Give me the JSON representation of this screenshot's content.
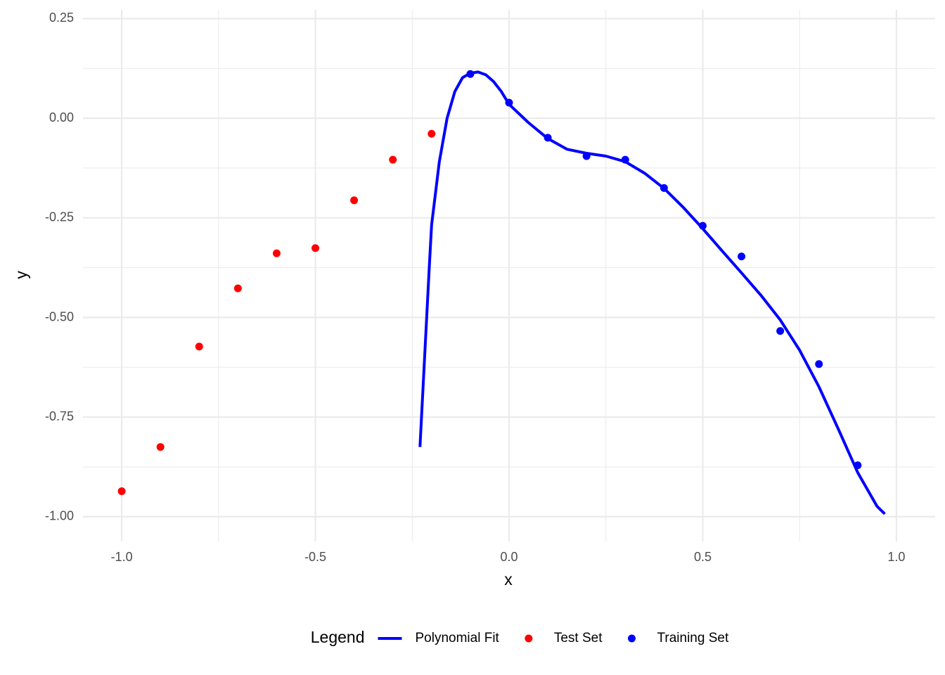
{
  "chart_data": {
    "type": "scatter",
    "x_label": "x",
    "y_label": "y",
    "legend_title": "Legend",
    "legend_position": "bottom",
    "grid": true,
    "xlim": [
      -1.1,
      1.1
    ],
    "ylim": [
      -1.062,
      0.272
    ],
    "xticks": [
      {
        "value": -1.0,
        "label": "-1.0"
      },
      {
        "value": -0.5,
        "label": "-0.5"
      },
      {
        "value": 0,
        "label": "0.0"
      },
      {
        "value": 0.5,
        "label": "0.5"
      },
      {
        "value": 1.0,
        "label": "1.0"
      }
    ],
    "yticks": [
      {
        "value": 0.25,
        "label": "0.25"
      },
      {
        "value": 0,
        "label": "0.00"
      },
      {
        "value": -0.25,
        "label": "-0.25"
      },
      {
        "value": -0.5,
        "label": "-0.50"
      },
      {
        "value": -0.75,
        "label": "-0.75"
      },
      {
        "value": -1.0,
        "label": "-1.00"
      }
    ],
    "xminor": [
      -0.75,
      -0.25,
      0.25,
      0.75
    ],
    "yminor": [
      0.125,
      -0.125,
      -0.375,
      -0.625,
      -0.875
    ],
    "series": [
      {
        "name": "Polynomial Fit",
        "mode": "line",
        "color": "#0000ff",
        "x": [
          -0.23,
          -0.206,
          -0.2,
          -0.18,
          -0.16,
          -0.14,
          -0.12,
          -0.1,
          -0.08,
          -0.06,
          -0.04,
          -0.02,
          0.0,
          0.05,
          0.1,
          0.15,
          0.2,
          0.25,
          0.3,
          0.35,
          0.4,
          0.45,
          0.5,
          0.55,
          0.6,
          0.65,
          0.7,
          0.75,
          0.8,
          0.85,
          0.9,
          0.95,
          0.97
        ],
        "values": [
          -0.825,
          -0.374,
          -0.268,
          -0.109,
          0.0,
          0.067,
          0.102,
          0.113,
          0.116,
          0.109,
          0.092,
          0.067,
          0.035,
          -0.011,
          -0.051,
          -0.078,
          -0.088,
          -0.095,
          -0.109,
          -0.138,
          -0.176,
          -0.224,
          -0.277,
          -0.333,
          -0.388,
          -0.444,
          -0.506,
          -0.582,
          -0.674,
          -0.78,
          -0.889,
          -0.974,
          -0.993
        ]
      },
      {
        "name": "Test Set",
        "mode": "points",
        "color": "#ff0000",
        "x": [
          -1.0,
          -0.9,
          -0.8,
          -0.7,
          -0.6,
          -0.5,
          -0.4,
          -0.3,
          -0.2
        ],
        "values": [
          -0.936,
          -0.825,
          -0.573,
          -0.427,
          -0.339,
          -0.326,
          -0.206,
          -0.104,
          -0.039
        ]
      },
      {
        "name": "Training Set",
        "mode": "points",
        "color": "#0000ff",
        "x": [
          -0.1,
          0.0,
          0.1,
          0.2,
          0.3,
          0.4,
          0.5,
          0.6,
          0.7,
          0.8,
          0.9
        ],
        "values": [
          0.111,
          0.039,
          -0.049,
          -0.095,
          -0.104,
          -0.175,
          -0.27,
          -0.347,
          -0.534,
          -0.617,
          -0.871
        ]
      }
    ]
  }
}
